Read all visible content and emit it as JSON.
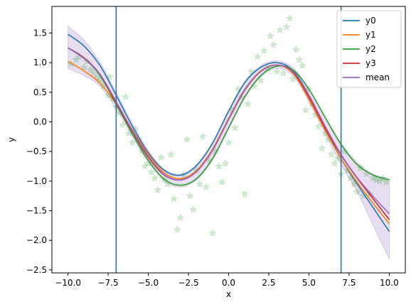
{
  "chart_data": {
    "type": "line",
    "title": "",
    "xlabel": "x",
    "ylabel": "y",
    "xlim": [
      -11.0,
      11.0
    ],
    "ylim": [
      -2.55,
      1.95
    ],
    "xticks": [
      -10.0,
      -7.5,
      -5.0,
      -2.5,
      0.0,
      2.5,
      5.0,
      7.5,
      10.0
    ],
    "xtick_labels": [
      "−10.0",
      "−7.5",
      "−5.0",
      "−2.5",
      "0.0",
      "2.5",
      "5.0",
      "7.5",
      "10.0"
    ],
    "yticks": [
      -2.5,
      -2.0,
      -1.5,
      -1.0,
      -0.5,
      0.0,
      0.5,
      1.0,
      1.5
    ],
    "ytick_labels": [
      "−2.5",
      "−2.0",
      "−1.5",
      "−1.0",
      "−0.5",
      "0.0",
      "0.5",
      "1.0",
      "1.5"
    ],
    "grid": false,
    "legend_position": "top-right",
    "vertical_lines": [
      -7.0,
      7.0
    ],
    "vertical_line_color": "#1f77b4",
    "series": [
      {
        "name": "y0",
        "color": "#1f77b4",
        "x": [
          -10,
          -9,
          -8,
          -7,
          -6,
          -5,
          -4,
          -3,
          -2,
          -1,
          0,
          1,
          2,
          3,
          4,
          5,
          6,
          7,
          8,
          9,
          10
        ],
        "y": [
          1.48,
          1.28,
          0.95,
          0.45,
          -0.07,
          -0.52,
          -0.82,
          -0.9,
          -0.74,
          -0.36,
          0.18,
          0.66,
          0.92,
          1.0,
          0.87,
          0.45,
          -0.1,
          -0.62,
          -1.05,
          -1.45,
          -1.85
        ]
      },
      {
        "name": "y1",
        "color": "#ff7f0e",
        "x": [
          -10,
          -9,
          -8,
          -7,
          -6,
          -5,
          -4,
          -3,
          -2,
          -1,
          0,
          1,
          2,
          3,
          4,
          5,
          6,
          7,
          8,
          9,
          10
        ],
        "y": [
          1.02,
          0.86,
          0.65,
          0.3,
          -0.13,
          -0.55,
          -0.86,
          -0.96,
          -0.82,
          -0.46,
          0.06,
          0.55,
          0.86,
          0.96,
          0.82,
          0.38,
          -0.14,
          -0.62,
          -1.02,
          -1.38,
          -1.72
        ]
      },
      {
        "name": "y2",
        "color": "#2ca02c",
        "x": [
          -10,
          -9,
          -8,
          -7,
          -6,
          -5,
          -4,
          -3,
          -2,
          -1,
          0,
          1,
          2,
          3,
          4,
          5,
          6,
          7,
          8,
          9,
          10
        ],
        "y": [
          1.25,
          1.08,
          0.78,
          0.3,
          -0.2,
          -0.65,
          -0.97,
          -1.07,
          -0.96,
          -0.62,
          -0.1,
          0.42,
          0.78,
          0.94,
          0.88,
          0.55,
          0.08,
          -0.38,
          -0.72,
          -0.9,
          -0.98
        ]
      },
      {
        "name": "y3",
        "color": "#d62728",
        "x": [
          -10,
          -9,
          -8,
          -7,
          -6,
          -5,
          -4,
          -3,
          -2,
          -1,
          0,
          1,
          2,
          3,
          4,
          5,
          6,
          7,
          8,
          9,
          10
        ],
        "y": [
          1.25,
          1.08,
          0.8,
          0.32,
          -0.16,
          -0.6,
          -0.9,
          -0.98,
          -0.84,
          -0.48,
          0.04,
          0.53,
          0.85,
          0.96,
          0.84,
          0.42,
          -0.1,
          -0.56,
          -0.95,
          -1.3,
          -1.65
        ]
      },
      {
        "name": "mean",
        "color": "#9467bd",
        "x": [
          -10,
          -9,
          -8,
          -7,
          -6,
          -5,
          -4,
          -3,
          -2,
          -1,
          0,
          1,
          2,
          3,
          4,
          5,
          6,
          7,
          8,
          9,
          10
        ],
        "y": [
          1.25,
          1.07,
          0.8,
          0.34,
          -0.14,
          -0.58,
          -0.89,
          -0.98,
          -0.84,
          -0.48,
          0.04,
          0.54,
          0.85,
          0.96,
          0.85,
          0.45,
          -0.07,
          -0.55,
          -0.94,
          -1.26,
          -1.55
        ],
        "band_upper": [
          1.62,
          1.38,
          1.0,
          0.5,
          -0.02,
          -0.48,
          -0.8,
          -0.88,
          -0.72,
          -0.34,
          0.2,
          0.68,
          0.95,
          1.03,
          0.92,
          0.56,
          0.08,
          -0.36,
          -0.68,
          -0.88,
          -0.95
        ],
        "band_lower": [
          0.9,
          0.78,
          0.6,
          0.22,
          -0.25,
          -0.68,
          -1.0,
          -1.1,
          -0.98,
          -0.64,
          -0.12,
          0.4,
          0.76,
          0.9,
          0.78,
          0.34,
          -0.2,
          -0.72,
          -1.18,
          -1.75,
          -2.32
        ]
      }
    ],
    "scatter": {
      "color": "#2ca02c",
      "marker": "star",
      "alpha": 0.22,
      "points": [
        [
          -9.8,
          0.98
        ],
        [
          -9.5,
          1.05
        ],
        [
          -9.3,
          1.1
        ],
        [
          -9.0,
          0.92
        ],
        [
          -8.8,
          1.02
        ],
        [
          -8.6,
          0.88
        ],
        [
          -8.4,
          0.82
        ],
        [
          -8.2,
          0.75
        ],
        [
          -8.0,
          0.7
        ],
        [
          -7.8,
          0.6
        ],
        [
          -7.5,
          0.45
        ],
        [
          -7.4,
          0.76
        ],
        [
          -7.2,
          0.4
        ],
        [
          -7.0,
          0.25
        ],
        [
          -6.8,
          0.15
        ],
        [
          -6.6,
          -0.05
        ],
        [
          -6.4,
          0.42
        ],
        [
          -6.2,
          -0.2
        ],
        [
          -6.0,
          -0.35
        ],
        [
          -5.8,
          -0.12
        ],
        [
          -5.6,
          -0.3
        ],
        [
          -5.4,
          -0.5
        ],
        [
          -5.2,
          -0.75
        ],
        [
          -5.0,
          -0.7
        ],
        [
          -4.8,
          -0.85
        ],
        [
          -4.6,
          -0.95
        ],
        [
          -4.4,
          -1.15
        ],
        [
          -4.2,
          -0.6
        ],
        [
          -4.0,
          -0.98
        ],
        [
          -3.8,
          -1.05
        ],
        [
          -3.6,
          -0.55
        ],
        [
          -3.4,
          -1.3
        ],
        [
          -3.2,
          -1.82
        ],
        [
          -3.0,
          -1.62
        ],
        [
          -2.8,
          -0.9
        ],
        [
          -2.6,
          -0.3
        ],
        [
          -2.4,
          -1.25
        ],
        [
          -2.2,
          -1.48
        ],
        [
          -2.0,
          -0.82
        ],
        [
          -1.8,
          -1.05
        ],
        [
          -1.6,
          -0.25
        ],
        [
          -1.4,
          -1.1
        ],
        [
          -1.2,
          -0.65
        ],
        [
          -1.0,
          -1.88
        ],
        [
          -0.8,
          -0.5
        ],
        [
          -0.6,
          -0.75
        ],
        [
          -0.4,
          -1.02
        ],
        [
          -0.2,
          -0.7
        ],
        [
          0.0,
          -0.35
        ],
        [
          0.2,
          0.2
        ],
        [
          0.4,
          -0.1
        ],
        [
          0.6,
          0.55
        ],
        [
          0.8,
          0.42
        ],
        [
          1.0,
          -1.22
        ],
        [
          1.2,
          0.3
        ],
        [
          1.4,
          0.85
        ],
        [
          1.6,
          0.6
        ],
        [
          1.8,
          1.1
        ],
        [
          2.0,
          0.7
        ],
        [
          2.2,
          1.2
        ],
        [
          2.4,
          0.9
        ],
        [
          2.6,
          1.45
        ],
        [
          2.8,
          1.3
        ],
        [
          3.0,
          0.85
        ],
        [
          3.2,
          1.55
        ],
        [
          3.4,
          0.82
        ],
        [
          3.6,
          1.6
        ],
        [
          3.8,
          1.75
        ],
        [
          4.0,
          0.72
        ],
        [
          4.2,
          1.22
        ],
        [
          4.4,
          1.05
        ],
        [
          4.6,
          0.95
        ],
        [
          4.8,
          0.2
        ],
        [
          5.0,
          0.55
        ],
        [
          5.2,
          0.3
        ],
        [
          5.4,
          0.12
        ],
        [
          5.6,
          -0.08
        ],
        [
          5.8,
          -0.45
        ],
        [
          6.0,
          -0.2
        ],
        [
          6.2,
          -0.3
        ],
        [
          6.4,
          -0.55
        ],
        [
          6.6,
          -0.7
        ],
        [
          6.8,
          -0.62
        ],
        [
          7.0,
          -0.88
        ],
        [
          7.2,
          -0.5
        ],
        [
          7.4,
          -0.82
        ],
        [
          7.6,
          -0.95
        ],
        [
          7.8,
          -1.05
        ],
        [
          8.0,
          -1.18
        ],
        [
          8.2,
          -0.78
        ],
        [
          8.4,
          -1.25
        ],
        [
          8.6,
          -0.88
        ],
        [
          8.8,
          -1.22
        ],
        [
          9.0,
          -0.95
        ],
        [
          9.2,
          -0.98
        ],
        [
          9.4,
          -1.0
        ],
        [
          9.6,
          -0.95
        ],
        [
          9.8,
          -1.02
        ]
      ]
    }
  }
}
